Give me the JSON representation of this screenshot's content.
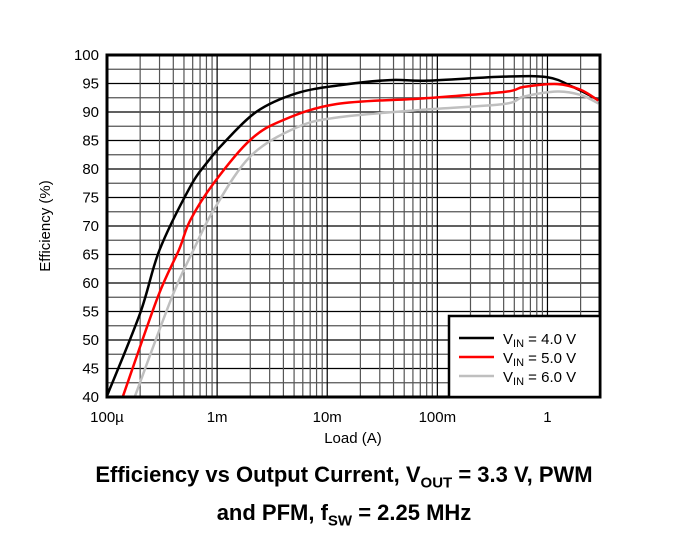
{
  "chart_data": {
    "type": "line",
    "title_line1_pre": "Efficiency vs Output Current, V",
    "title_line1_sub": "OUT",
    "title_line1_post": " = 3.3 V, PWM",
    "title_line2_pre": "and PFM, f",
    "title_line2_sub": "SW",
    "title_line2_post": " = 2.25 MHz",
    "xlabel": "Load (A)",
    "ylabel": "Efficiency (%)",
    "xscale": "log",
    "xlim": [
      0.0001,
      3
    ],
    "ylim": [
      40,
      100
    ],
    "grid": true,
    "legend_position": "bottom-right",
    "x_ticks": [
      {
        "value": 0.0001,
        "label": "100µ"
      },
      {
        "value": 0.001,
        "label": "1m"
      },
      {
        "value": 0.01,
        "label": "10m"
      },
      {
        "value": 0.1,
        "label": "100m"
      },
      {
        "value": 1,
        "label": "1"
      }
    ],
    "y_ticks": [
      40,
      45,
      50,
      55,
      60,
      65,
      70,
      75,
      80,
      85,
      90,
      95,
      100
    ],
    "series": [
      {
        "name_pre": "V",
        "name_sub": "IN",
        "name_post": " = 4.0 V",
        "color": "#000000",
        "x": [
          0.0001,
          0.0002,
          0.0003,
          0.00057,
          0.0008,
          0.00114,
          0.0023,
          0.0053,
          0.013,
          0.037,
          0.081,
          0.4,
          1.0,
          1.7,
          2.9
        ],
        "y": [
          40.2,
          54.7,
          65.8,
          76.9,
          81,
          84.5,
          90.1,
          93.3,
          94.7,
          95.6,
          95.5,
          96.2,
          96.1,
          94.4,
          92.1
        ]
      },
      {
        "name_pre": "V",
        "name_sub": "IN",
        "name_post": " = 5.0 V",
        "color": "#ff0000",
        "x": [
          0.00014,
          0.00029,
          0.00045,
          0.00057,
          0.00093,
          0.002,
          0.004,
          0.0122,
          0.075,
          0.4,
          0.61,
          1.23,
          2.0,
          2.9
        ],
        "y": [
          40.2,
          57.6,
          65.8,
          71,
          77.5,
          85.1,
          88.6,
          91.4,
          92.4,
          93.5,
          94.4,
          94.9,
          93.9,
          92.0
        ]
      },
      {
        "name_pre": "V",
        "name_sub": "IN",
        "name_post": " = 6.0 V",
        "color": "#bfbfbf",
        "x": [
          0.00018,
          0.00039,
          0.00061,
          0.00093,
          0.002,
          0.0053,
          0.013,
          0.075,
          0.4,
          0.61,
          1.23,
          2.0,
          2.9
        ],
        "y": [
          40.2,
          57.6,
          65.8,
          72.8,
          82.2,
          87.3,
          89.1,
          90.4,
          91.4,
          92.7,
          93.6,
          93.0,
          91.5
        ]
      }
    ]
  }
}
